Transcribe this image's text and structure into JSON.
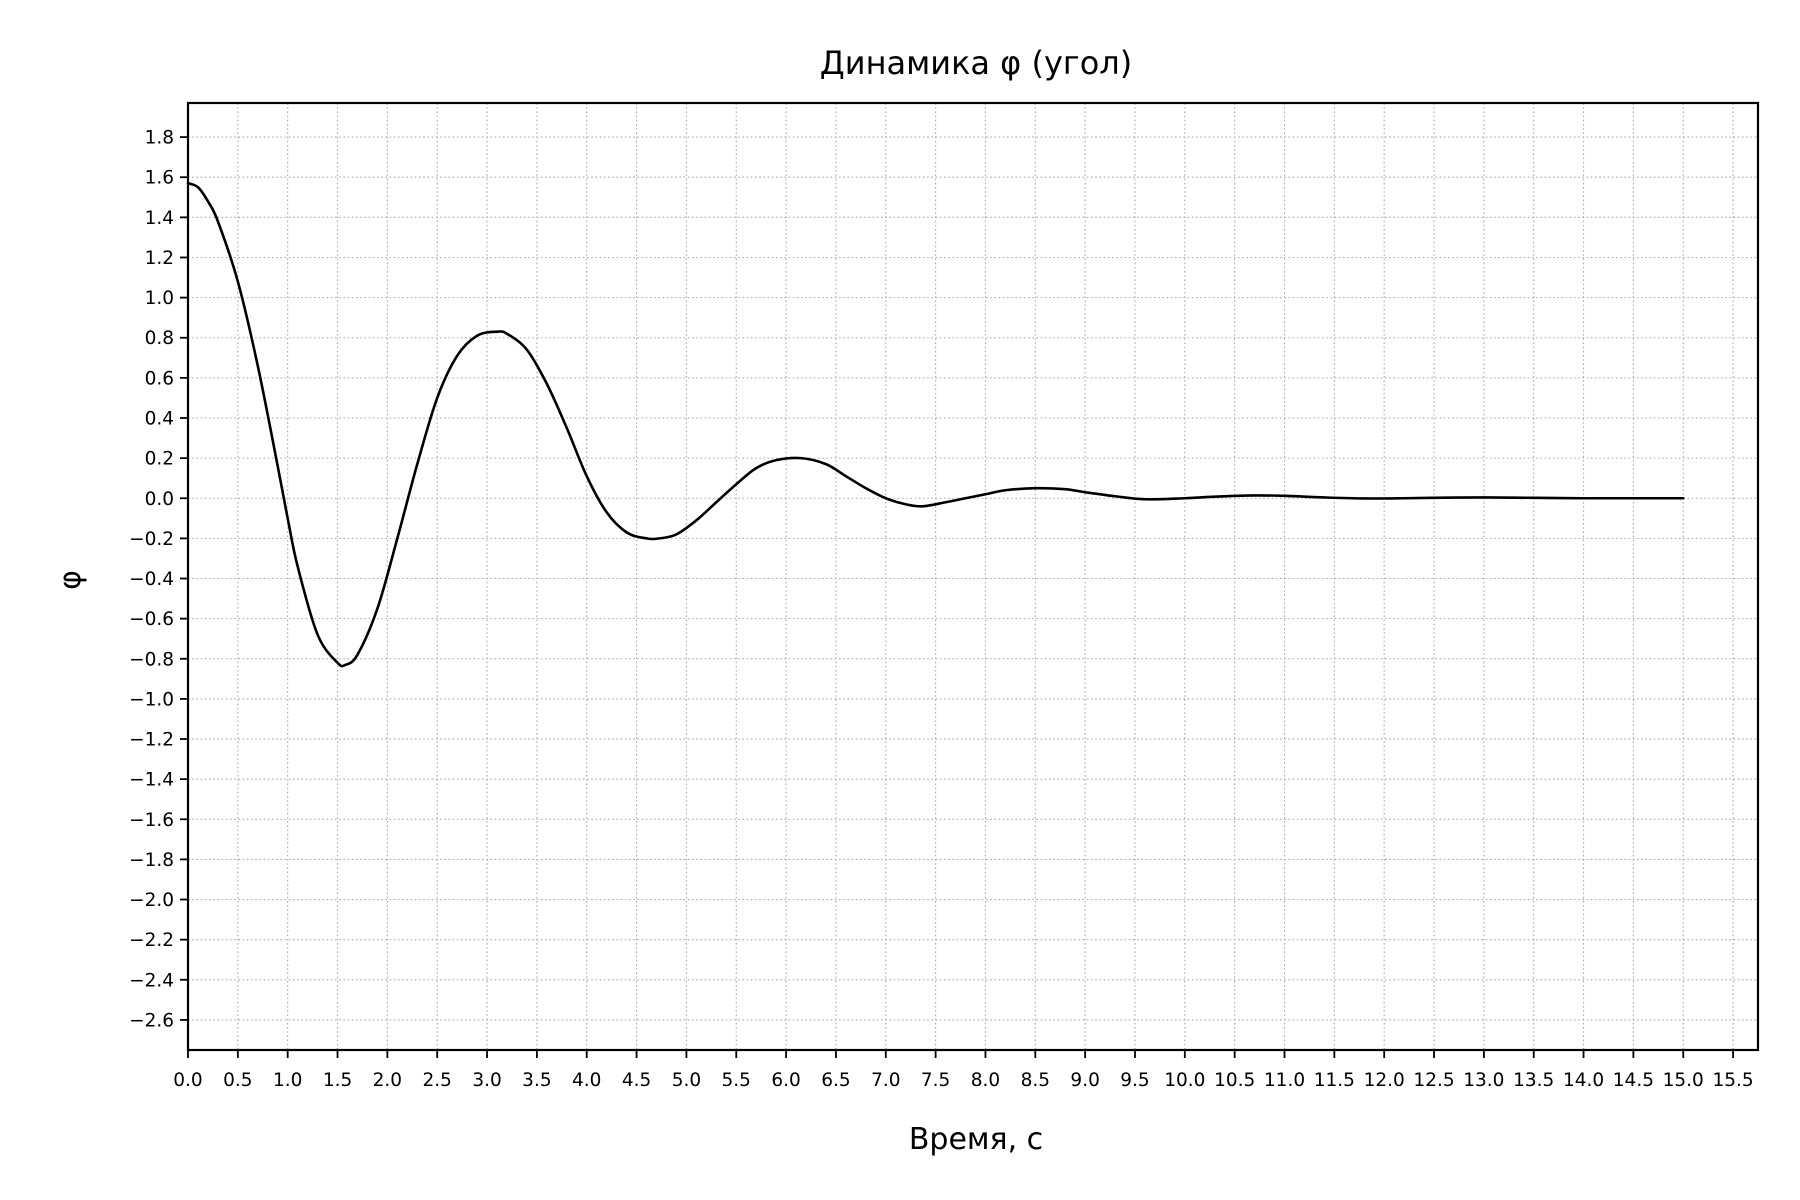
{
  "chart_data": {
    "type": "line",
    "title": "Динамика φ (угол)",
    "xlabel": "Время, с",
    "ylabel": "φ",
    "xlim": [
      0.0,
      15.75
    ],
    "ylim": [
      -2.75,
      1.97
    ],
    "x_ticks": [
      "0.0",
      "0.5",
      "1.0",
      "1.5",
      "2.0",
      "2.5",
      "3.0",
      "3.5",
      "4.0",
      "4.5",
      "5.0",
      "5.5",
      "6.0",
      "6.5",
      "7.0",
      "7.5",
      "8.0",
      "8.5",
      "9.0",
      "9.5",
      "10.0",
      "10.5",
      "11.0",
      "11.5",
      "12.0",
      "12.5",
      "13.0",
      "13.5",
      "14.0",
      "14.5",
      "15.0",
      "15.5"
    ],
    "y_ticks": [
      "1.8",
      "1.6",
      "1.4",
      "1.2",
      "1.0",
      "0.8",
      "0.6",
      "0.4",
      "0.2",
      "0.0",
      "−0.2",
      "−0.4",
      "−0.6",
      "−0.8",
      "−1.0",
      "−1.2",
      "−1.4",
      "−1.6",
      "−1.8",
      "−2.0",
      "−2.2",
      "−2.4",
      "−2.6"
    ],
    "grid": true,
    "legend": "none",
    "series": [
      {
        "color": "#000000",
        "x": [
          0.0,
          0.1,
          0.2,
          0.3,
          0.5,
          0.7,
          0.9,
          1.0,
          1.1,
          1.3,
          1.5,
          1.58,
          1.7,
          1.9,
          2.1,
          2.3,
          2.5,
          2.7,
          2.9,
          3.1,
          3.2,
          3.4,
          3.6,
          3.8,
          4.0,
          4.2,
          4.4,
          4.6,
          4.73,
          4.9,
          5.1,
          5.3,
          5.5,
          5.7,
          5.9,
          6.15,
          6.4,
          6.6,
          6.8,
          7.0,
          7.2,
          7.37,
          7.6,
          7.8,
          8.0,
          8.2,
          8.5,
          8.8,
          9.0,
          9.3,
          9.6,
          10.0,
          10.3,
          10.7,
          11.0,
          11.4,
          11.8,
          12.2,
          12.6,
          13.0,
          13.5,
          14.0,
          14.5,
          15.0
        ],
        "y": [
          1.57,
          1.55,
          1.48,
          1.38,
          1.08,
          0.66,
          0.16,
          -0.1,
          -0.34,
          -0.68,
          -0.82,
          -0.83,
          -0.78,
          -0.55,
          -0.2,
          0.17,
          0.5,
          0.71,
          0.81,
          0.83,
          0.82,
          0.74,
          0.57,
          0.35,
          0.11,
          -0.07,
          -0.17,
          -0.2,
          -0.2,
          -0.18,
          -0.11,
          -0.02,
          0.07,
          0.15,
          0.19,
          0.2,
          0.17,
          0.11,
          0.05,
          0.0,
          -0.03,
          -0.04,
          -0.02,
          0.0,
          0.02,
          0.04,
          0.05,
          0.045,
          0.03,
          0.01,
          -0.005,
          0.0,
          0.008,
          0.014,
          0.012,
          0.004,
          -0.001,
          0.0,
          0.003,
          0.004,
          0.002,
          0.0,
          0.0,
          0.0
        ]
      }
    ]
  }
}
